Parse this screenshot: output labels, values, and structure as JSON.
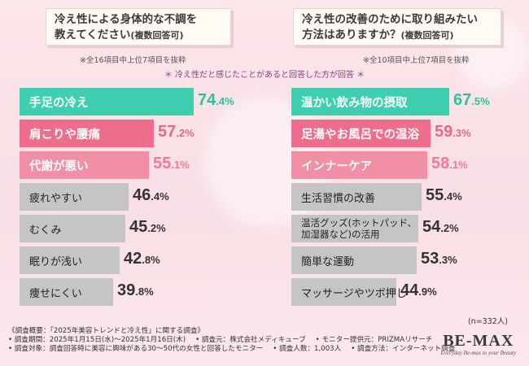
{
  "left_question": {
    "line1": "冷え性による身体的な不調を",
    "line2_main": "教えてください",
    "line2_small": "(複数回答可)",
    "note": "※全16項目中上位7項目を抜粋"
  },
  "right_question": {
    "line1": "冷え性の改善のために取り組みたい",
    "line2_main": "方法はありますか？",
    "line2_small": "(複数回答可)",
    "note": "※全10項目中上位7項目を抜粋"
  },
  "respondent_note": "＊ 冷え性だと感じたことがあると回答した方が回答 ＊",
  "sample_size": "(n=332人)",
  "colors": {
    "rank1": "#3fceb0",
    "rank2": "#ef6d8c",
    "rank3": "#f08fa6",
    "other": "#c5c5c5"
  },
  "chart_data": [
    {
      "type": "bar",
      "orientation": "horizontal",
      "title": "冷え性による身体的な不調を教えてください(複数回答可)",
      "unit": "%",
      "xlim": [
        0,
        100
      ],
      "categories": [
        "手足の冷え",
        "肩こりや腰痛",
        "代謝が悪い",
        "疲れやすい",
        "むくみ",
        "眠りが浅い",
        "痩せにくい"
      ],
      "values": [
        74.4,
        57.2,
        55.1,
        46.4,
        45.2,
        42.8,
        39.8
      ],
      "value_labels": [
        {
          "int": "74",
          "dec": ".4%"
        },
        {
          "int": "57",
          "dec": ".2%"
        },
        {
          "int": "55",
          "dec": ".1%"
        },
        {
          "int": "46",
          "dec": ".4%"
        },
        {
          "int": "45",
          "dec": ".2%"
        },
        {
          "int": "42",
          "dec": ".8%"
        },
        {
          "int": "39",
          "dec": ".8%"
        }
      ]
    },
    {
      "type": "bar",
      "orientation": "horizontal",
      "title": "冷え性の改善のために取り組みたい方法はありますか？(複数回答可)",
      "unit": "%",
      "xlim": [
        0,
        100
      ],
      "categories": [
        "温かい飲み物の摂取",
        "足湯やお風呂での温浴",
        "インナーケア",
        "生活習慣の改善",
        "温活グッズ(ホットパッド、加湿器など)の活用",
        "簡単な運動",
        "マッサージやツボ押し"
      ],
      "display_lines": [
        [
          "温かい飲み物の摂取"
        ],
        [
          "足湯やお風呂での温浴"
        ],
        [
          "インナーケア"
        ],
        [
          "生活習慣の改善"
        ],
        [
          "温活グッズ(ホットパッド、",
          "加湿器など)の活用"
        ],
        [
          "簡単な運動"
        ],
        [
          "マッサージやツボ押し"
        ]
      ],
      "values": [
        67.5,
        59.3,
        58.1,
        55.4,
        54.2,
        53.3,
        44.9
      ],
      "value_labels": [
        {
          "int": "67",
          "dec": ".5%"
        },
        {
          "int": "59",
          "dec": ".3%"
        },
        {
          "int": "58",
          "dec": ".1%"
        },
        {
          "int": "55",
          "dec": ".4%"
        },
        {
          "int": "54",
          "dec": ".2%"
        },
        {
          "int": "53",
          "dec": ".3%"
        },
        {
          "int": "44",
          "dec": ".9%"
        }
      ]
    }
  ],
  "footer": {
    "line1": "《調査概要：「2025年美容トレンドと冷え性」に関する調査》",
    "line2a": "• 調査期間：2025年1月15日(水)～2025年1月16日(木)",
    "line2b": "• 調査元：株式会社メディキューブ",
    "line2c": "• モニター提供元：PRIZMAリサーチ",
    "line3a": "• 調査対象：調査回答時に美容に興味がある30〜50代の女性と回答したモニター",
    "line3b": "• 調査人数：1,003人",
    "line3c": "• 調査方法：インターネット調査"
  },
  "brand": {
    "name": "BE-MAX",
    "tagline": "Everyday Be-max to your Beauty"
  }
}
